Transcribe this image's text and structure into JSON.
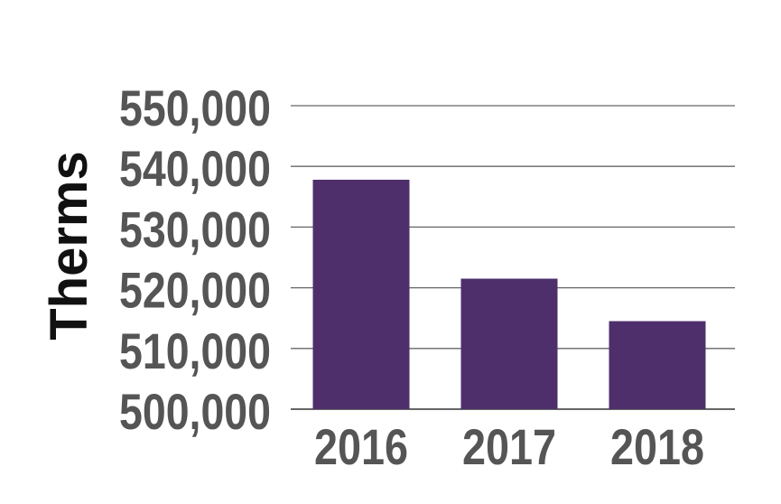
{
  "chart_data": {
    "type": "bar",
    "categories": [
      "2016",
      "2017",
      "2018"
    ],
    "values": [
      537800,
      521500,
      514500
    ],
    "ylabel": "Therms",
    "ylim": [
      500000,
      550000
    ],
    "yticks": [
      500000,
      510000,
      520000,
      530000,
      540000,
      550000
    ],
    "ytick_labels": [
      "500,000",
      "510,000",
      "520,000",
      "530,000",
      "540,000",
      "550,000"
    ],
    "grid": true,
    "bar_color": "#4e2f6c",
    "grid_color": "#666666"
  }
}
